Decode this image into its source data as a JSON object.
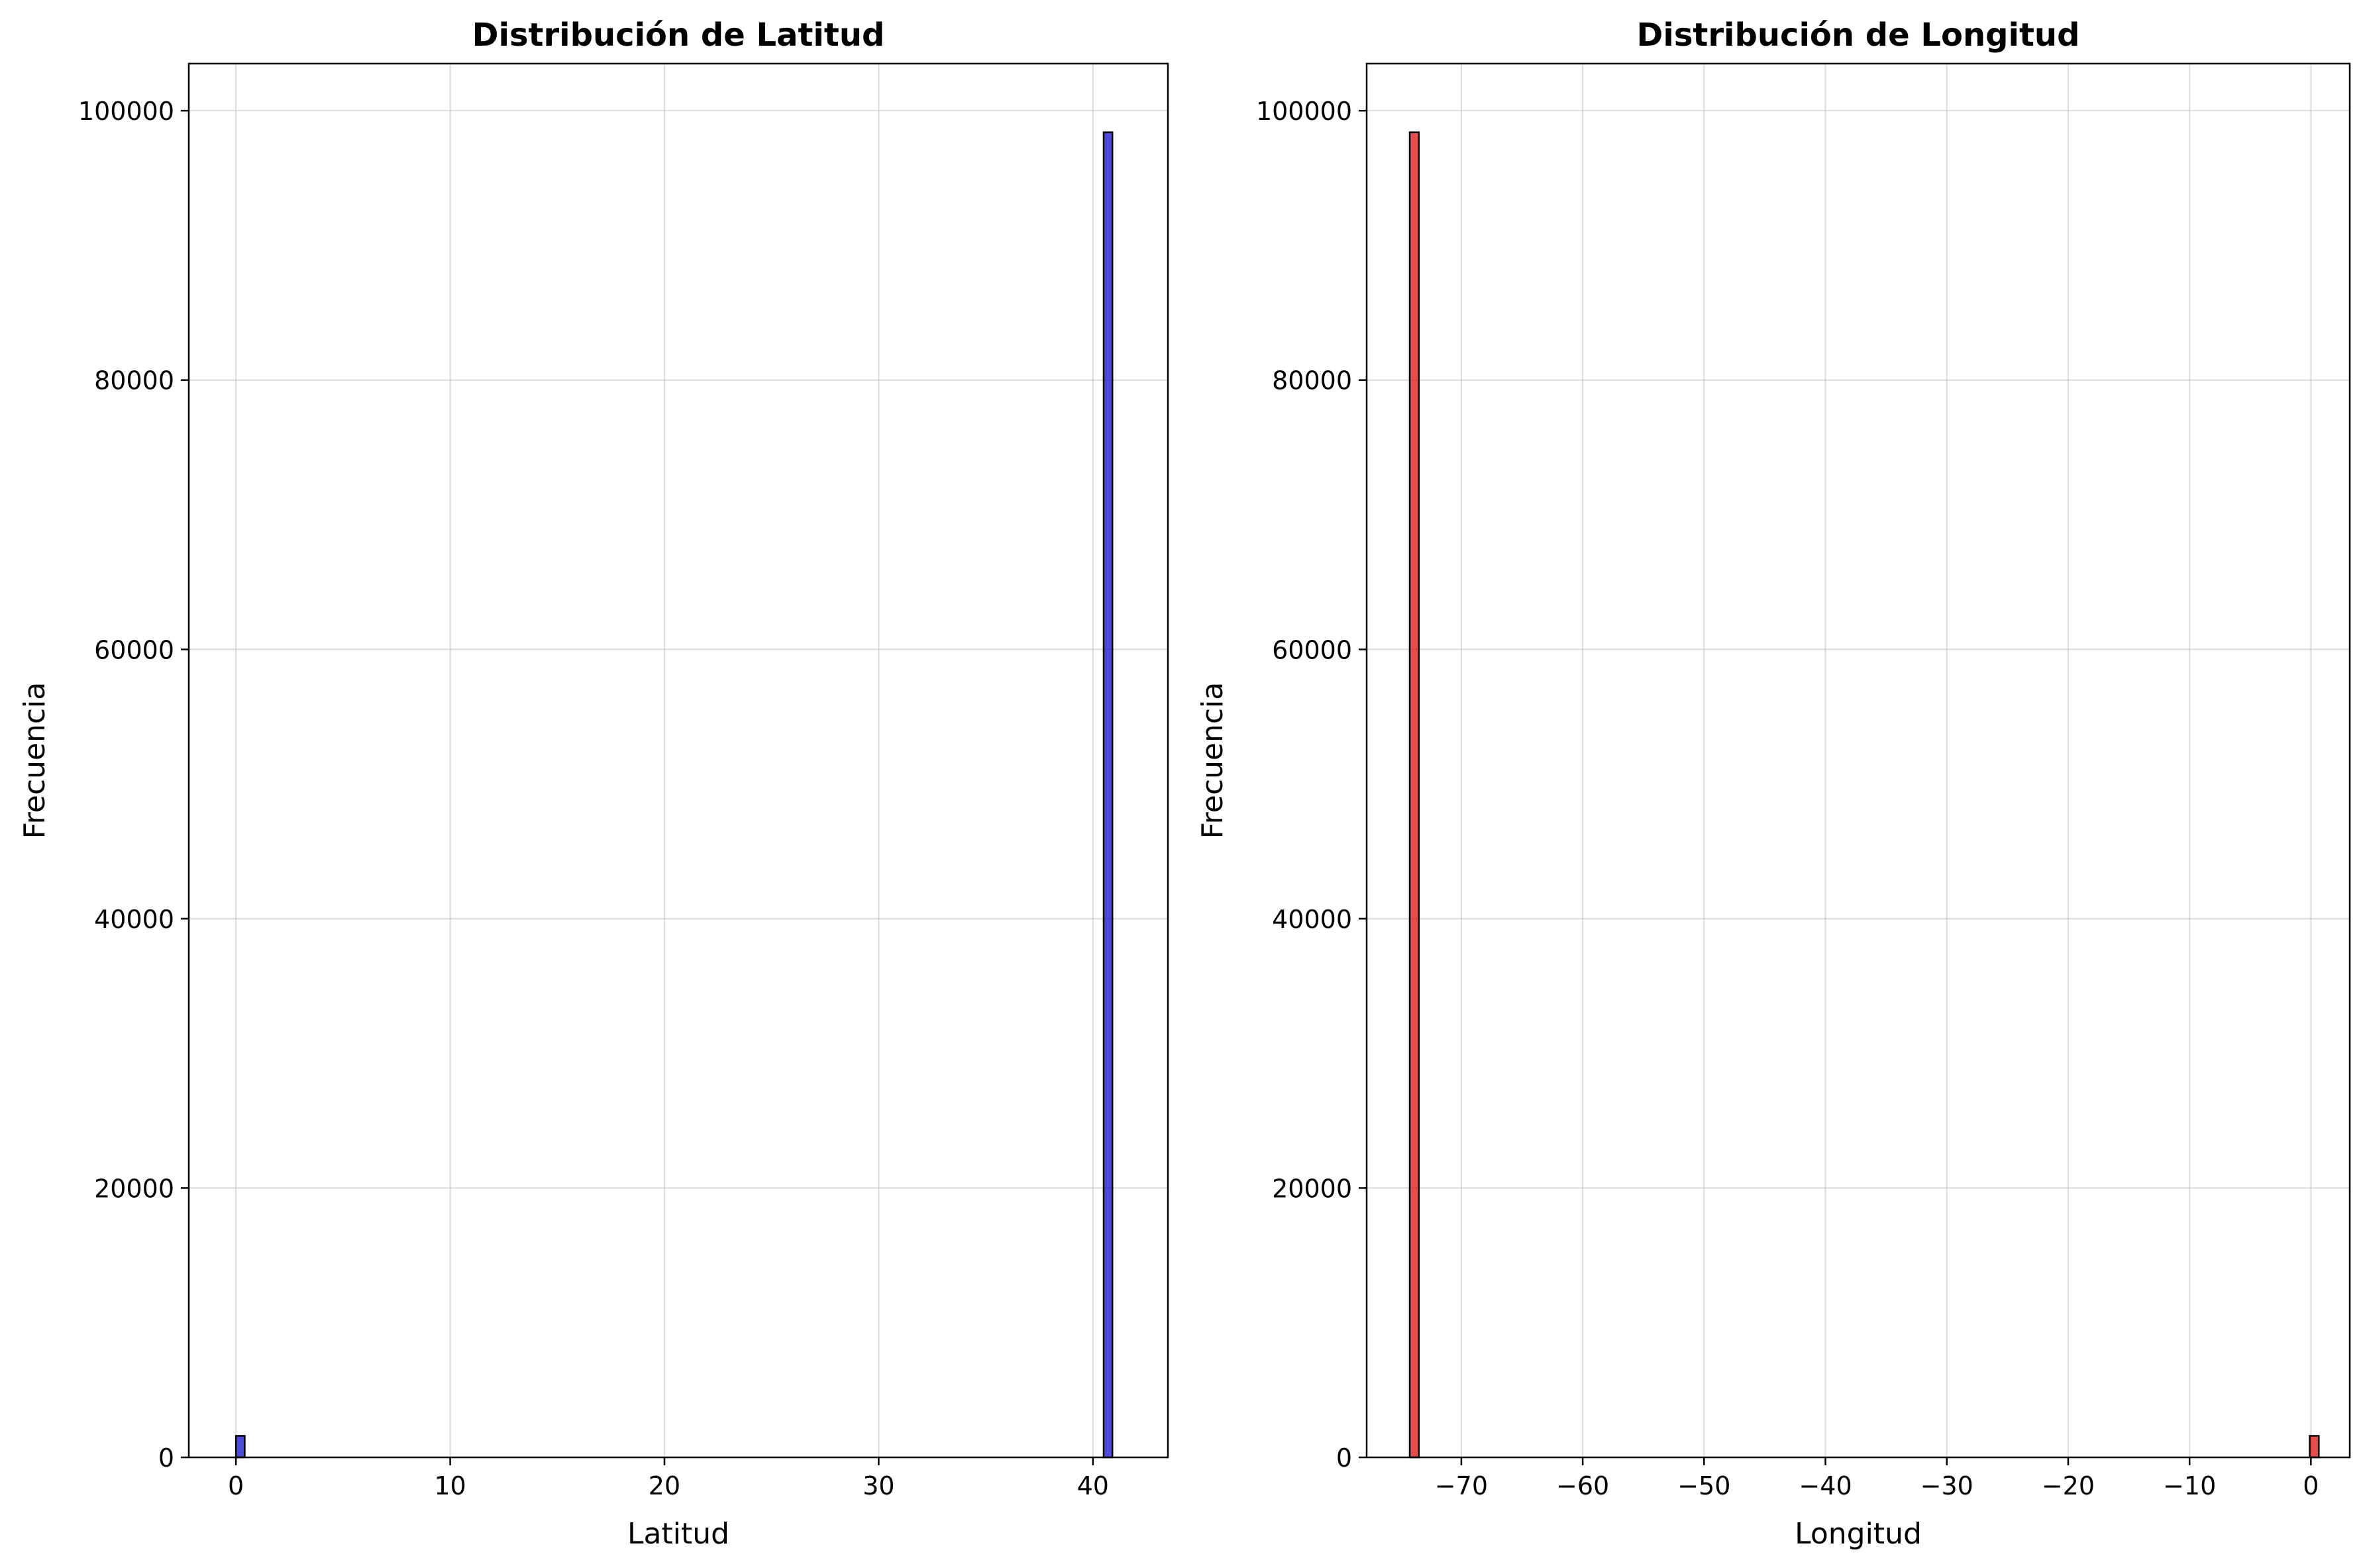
{
  "chart_data": [
    {
      "type": "bar",
      "subtype": "histogram",
      "title": "Distribución de Latitud",
      "xlabel": "Latitud",
      "ylabel": "Frecuencia",
      "xlim": [
        -2.2,
        43.5
      ],
      "ylim": [
        0,
        103500
      ],
      "xticks": [
        0,
        10,
        20,
        30,
        40
      ],
      "xtick_labels": [
        "0",
        "10",
        "20",
        "30",
        "40"
      ],
      "yticks": [
        0,
        20000,
        40000,
        60000,
        80000,
        100000
      ],
      "ytick_labels": [
        "0",
        "20000",
        "40000",
        "60000",
        "80000",
        "100000"
      ],
      "grid": true,
      "color": "#0000cc",
      "bins": [
        {
          "x0": 0.0,
          "x1": 0.41,
          "value": 1600
        },
        {
          "x0": 40.5,
          "x1": 40.91,
          "value": 98400
        }
      ]
    },
    {
      "type": "bar",
      "subtype": "histogram",
      "title": "Distribución de Longitud",
      "xlabel": "Longitud",
      "ylabel": "Frecuencia",
      "xlim": [
        -77.8,
        3.2
      ],
      "ylim": [
        0,
        103500
      ],
      "xticks": [
        -70,
        -60,
        -50,
        -40,
        -30,
        -20,
        -10,
        0
      ],
      "xtick_labels": [
        "−70",
        "−60",
        "−50",
        "−40",
        "−30",
        "−20",
        "−10",
        "0"
      ],
      "yticks": [
        0,
        20000,
        40000,
        60000,
        80000,
        100000
      ],
      "ytick_labels": [
        "0",
        "20000",
        "40000",
        "60000",
        "80000",
        "100000"
      ],
      "grid": true,
      "color": "#dd0000",
      "bins": [
        {
          "x0": -74.25,
          "x1": -73.5,
          "value": 98400
        },
        {
          "x0": -0.1,
          "x1": 0.65,
          "value": 1600
        }
      ]
    }
  ]
}
